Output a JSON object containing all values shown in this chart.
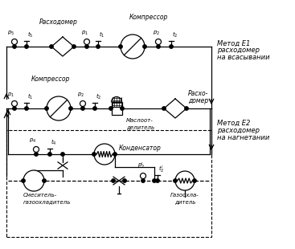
{
  "background_color": "#ffffff",
  "line_color": "#000000",
  "method_e1_label": [
    "Метод E1",
    "расходомер",
    "на всасывании"
  ],
  "method_e2_label": [
    "Метод E2",
    "расходомер",
    "на нагнетании"
  ],
  "label_kompressor_top": "Компрессор",
  "label_raskhod_top": "Расходомер",
  "label_kompressor_mid": "Компрессор",
  "label_maslo": [
    "Маслоот-",
    "делитель"
  ],
  "label_raskhod_mid": [
    "Расхо-",
    "домер"
  ],
  "label_kondensator": "Конденсатор",
  "label_smesitel": [
    "Смеситель-",
    "газоохладитель"
  ],
  "label_gazokhla": [
    "Газоохла-",
    "дитель"
  ]
}
